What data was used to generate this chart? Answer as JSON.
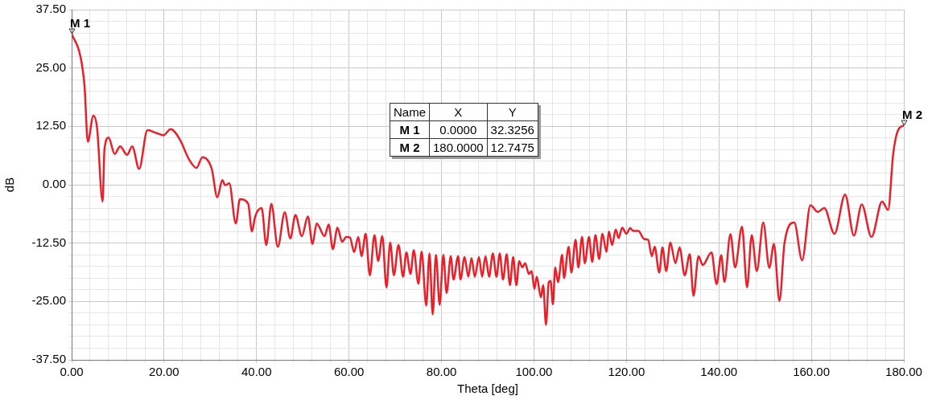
{
  "chart_data": {
    "type": "line",
    "xlabel": "Theta [deg]",
    "ylabel": "dB",
    "xlim": [
      0,
      180
    ],
    "ylim": [
      -37.5,
      37.5
    ],
    "xticks": [
      {
        "value": 0,
        "label": "0.00"
      },
      {
        "value": 4,
        "label": null
      },
      {
        "value": 8,
        "label": null
      },
      {
        "value": 12,
        "label": null
      },
      {
        "value": 16,
        "label": null
      },
      {
        "value": 20,
        "label": "20.00"
      },
      {
        "value": 24,
        "label": null
      },
      {
        "value": 28,
        "label": null
      },
      {
        "value": 32,
        "label": null
      },
      {
        "value": 36,
        "label": null
      },
      {
        "value": 40,
        "label": "40.00"
      },
      {
        "value": 44,
        "label": null
      },
      {
        "value": 48,
        "label": null
      },
      {
        "value": 52,
        "label": null
      },
      {
        "value": 56,
        "label": null
      },
      {
        "value": 60,
        "label": "60.00"
      },
      {
        "value": 64,
        "label": null
      },
      {
        "value": 68,
        "label": null
      },
      {
        "value": 72,
        "label": null
      },
      {
        "value": 76,
        "label": null
      },
      {
        "value": 80,
        "label": "80.00"
      },
      {
        "value": 84,
        "label": null
      },
      {
        "value": 88,
        "label": null
      },
      {
        "value": 92,
        "label": null
      },
      {
        "value": 96,
        "label": null
      },
      {
        "value": 100,
        "label": "100.00"
      },
      {
        "value": 104,
        "label": null
      },
      {
        "value": 108,
        "label": null
      },
      {
        "value": 112,
        "label": null
      },
      {
        "value": 116,
        "label": null
      },
      {
        "value": 120,
        "label": "120.00"
      },
      {
        "value": 124,
        "label": null
      },
      {
        "value": 128,
        "label": null
      },
      {
        "value": 132,
        "label": null
      },
      {
        "value": 136,
        "label": null
      },
      {
        "value": 140,
        "label": "140.00"
      },
      {
        "value": 144,
        "label": null
      },
      {
        "value": 148,
        "label": null
      },
      {
        "value": 152,
        "label": null
      },
      {
        "value": 156,
        "label": null
      },
      {
        "value": 160,
        "label": "160.00"
      },
      {
        "value": 164,
        "label": null
      },
      {
        "value": 168,
        "label": null
      },
      {
        "value": 172,
        "label": null
      },
      {
        "value": 176,
        "label": null
      },
      {
        "value": 180,
        "label": "180.00"
      }
    ],
    "yticks": [
      {
        "value": -37.5,
        "label": "-37.50"
      },
      {
        "value": -35,
        "label": null
      },
      {
        "value": -32.5,
        "label": null
      },
      {
        "value": -30,
        "label": null
      },
      {
        "value": -27.5,
        "label": null
      },
      {
        "value": -25,
        "label": "-25.00"
      },
      {
        "value": -22.5,
        "label": null
      },
      {
        "value": -20,
        "label": null
      },
      {
        "value": -17.5,
        "label": null
      },
      {
        "value": -15,
        "label": null
      },
      {
        "value": -12.5,
        "label": "-12.50"
      },
      {
        "value": -10,
        "label": null
      },
      {
        "value": -7.5,
        "label": null
      },
      {
        "value": -5,
        "label": null
      },
      {
        "value": -2.5,
        "label": null
      },
      {
        "value": 0,
        "label": "0.00"
      },
      {
        "value": 2.5,
        "label": null
      },
      {
        "value": 5,
        "label": null
      },
      {
        "value": 7.5,
        "label": null
      },
      {
        "value": 10,
        "label": null
      },
      {
        "value": 12.5,
        "label": "12.50"
      },
      {
        "value": 15,
        "label": null
      },
      {
        "value": 17.5,
        "label": null
      },
      {
        "value": 20,
        "label": null
      },
      {
        "value": 22.5,
        "label": null
      },
      {
        "value": 25,
        "label": "25.00"
      },
      {
        "value": 27.5,
        "label": null
      },
      {
        "value": 30,
        "label": null
      },
      {
        "value": 32.5,
        "label": null
      },
      {
        "value": 35,
        "label": null
      },
      {
        "value": 37.5,
        "label": "37.50"
      }
    ],
    "grid": true,
    "legend": false,
    "marker": "none",
    "line_style": "solid",
    "series": [
      {
        "color": "#e8202a",
        "x": [
          0,
          1.9,
          2.8,
          3.5,
          4.7,
          5.5,
          6.7,
          7.1,
          8,
          9.3,
          10.5,
          12,
          13.1,
          14.6,
          16.4,
          18.5,
          19.9,
          21.4,
          23.4,
          25.4,
          27,
          28.3,
          30.3,
          31.5,
          32.6,
          33.2,
          34.1,
          35.5,
          36.4,
          38.2,
          39,
          39.7,
          41.1,
          42.1,
          43.2,
          44.6,
          46.1,
          47.3,
          48.4,
          49.8,
          51.1,
          52.1,
          53,
          54.7,
          55.6,
          56.5,
          57.5,
          58.5,
          59.4,
          60.2,
          61.1,
          62,
          62.7,
          63.6,
          64.5,
          65.5,
          66.3,
          67.2,
          68.1,
          68.9,
          69.7,
          70.7,
          71.7,
          72.4,
          73.3,
          74,
          75,
          75.7,
          76.7,
          77.4,
          78.1,
          78.8,
          79.6,
          80.4,
          81.1,
          82,
          82.6,
          83.6,
          84.1,
          85,
          85.8,
          86.5,
          87.2,
          88.1,
          88.8,
          89.5,
          90.3,
          91.1,
          91.9,
          92.6,
          93.3,
          94.1,
          94.8,
          95.5,
          96.2,
          96.8,
          97.5,
          98.1,
          98.9,
          99.5,
          100.1,
          100.6,
          101.5,
          102,
          102.6,
          103.2,
          103.6,
          104.1,
          104.6,
          105.2,
          106.1,
          106.5,
          107.5,
          108.1,
          109,
          109.6,
          110.4,
          111,
          111.9,
          112.6,
          113.3,
          114.1,
          114.8,
          115.7,
          116.2,
          116.9,
          117.7,
          118.3,
          119.1,
          120,
          120.8,
          121.5,
          122.6,
          123.8,
          124.7,
          125.5,
          126.1,
          127.1,
          127.8,
          128.6,
          129.5,
          130.6,
          131.5,
          132.6,
          133.7,
          134.5,
          135.6,
          136.5,
          138.4,
          139.5,
          140.5,
          141.2,
          142.5,
          143.5,
          145,
          146.1,
          147.1,
          148.2,
          149.6,
          150.9,
          151.9,
          153.1,
          154.2,
          156.3,
          158,
          159.8,
          161.4,
          162.8,
          165,
          167.3,
          169.2,
          170.9,
          173,
          175.3,
          176.6,
          177.7,
          178.6,
          180
        ],
        "values": [
          32.3256,
          27.5,
          21,
          9.2,
          14.8,
          12.2,
          -3.6,
          7.5,
          10.1,
          6.6,
          8.2,
          6.4,
          8.2,
          3.4,
          11.7,
          11,
          10.6,
          11.9,
          9.7,
          5.4,
          3.6,
          5.9,
          3.4,
          -2.7,
          1,
          -0.1,
          0.3,
          -8.3,
          -3.1,
          -4.1,
          -10,
          -6.8,
          -5,
          -12.9,
          -4.1,
          -13.3,
          -5.9,
          -11.5,
          -6.5,
          -11,
          -6.8,
          -12.7,
          -8.3,
          -11,
          -8.5,
          -13.8,
          -9.2,
          -12.2,
          -11.2,
          -11.3,
          -14.4,
          -11.2,
          -15.3,
          -10.5,
          -19.4,
          -10.8,
          -16.3,
          -11,
          -22,
          -12.4,
          -19.4,
          -12.9,
          -19.7,
          -14.5,
          -19.1,
          -14,
          -21.2,
          -14.3,
          -25.9,
          -14.7,
          -27.8,
          -15,
          -25.7,
          -15,
          -23.2,
          -15.3,
          -20.3,
          -15.3,
          -20.3,
          -15.5,
          -19.7,
          -15.7,
          -19.7,
          -15.5,
          -19.7,
          -15.3,
          -19.7,
          -14.7,
          -19.7,
          -14.7,
          -20.3,
          -14.9,
          -21.5,
          -15.5,
          -21.5,
          -16.4,
          -17.7,
          -16.8,
          -19.1,
          -18.5,
          -22.3,
          -19.7,
          -24.1,
          -21.5,
          -30,
          -20.9,
          -20.6,
          -25.6,
          -17.7,
          -20.9,
          -15,
          -20,
          -13.3,
          -18.8,
          -11.8,
          -17.7,
          -11.2,
          -16.8,
          -11.2,
          -16.5,
          -10.8,
          -15.9,
          -10.5,
          -14.4,
          -10,
          -12.9,
          -9.6,
          -11.4,
          -9.2,
          -10.5,
          -9.3,
          -9.9,
          -9.9,
          -11.6,
          -11.8,
          -15.3,
          -13.3,
          -18.8,
          -13.4,
          -18.5,
          -12.4,
          -16.8,
          -13.4,
          -19.4,
          -14.9,
          -23.8,
          -15.3,
          -17.2,
          -14.5,
          -21.3,
          -15.1,
          -20.8,
          -10.6,
          -17.7,
          -9,
          -22,
          -10.8,
          -18.5,
          -8.1,
          -17.8,
          -12.7,
          -24.9,
          -12.4,
          -8.1,
          -16.2,
          -4.4,
          -5.8,
          -5,
          -10.5,
          -2.1,
          -10.9,
          -4.2,
          -11.2,
          -3.6,
          -5.4,
          6.6,
          11.3,
          12.7475
        ]
      }
    ],
    "annotations": [
      {
        "text": "M 1",
        "x": 0,
        "y": 32.3256
      },
      {
        "text": "M 2",
        "x": 180,
        "y": 12.7475
      },
      "Name",
      "X",
      "Y",
      "M 1",
      "0.0000",
      "32.3256",
      "M 2",
      "180.0000",
      "12.7475"
    ]
  }
}
